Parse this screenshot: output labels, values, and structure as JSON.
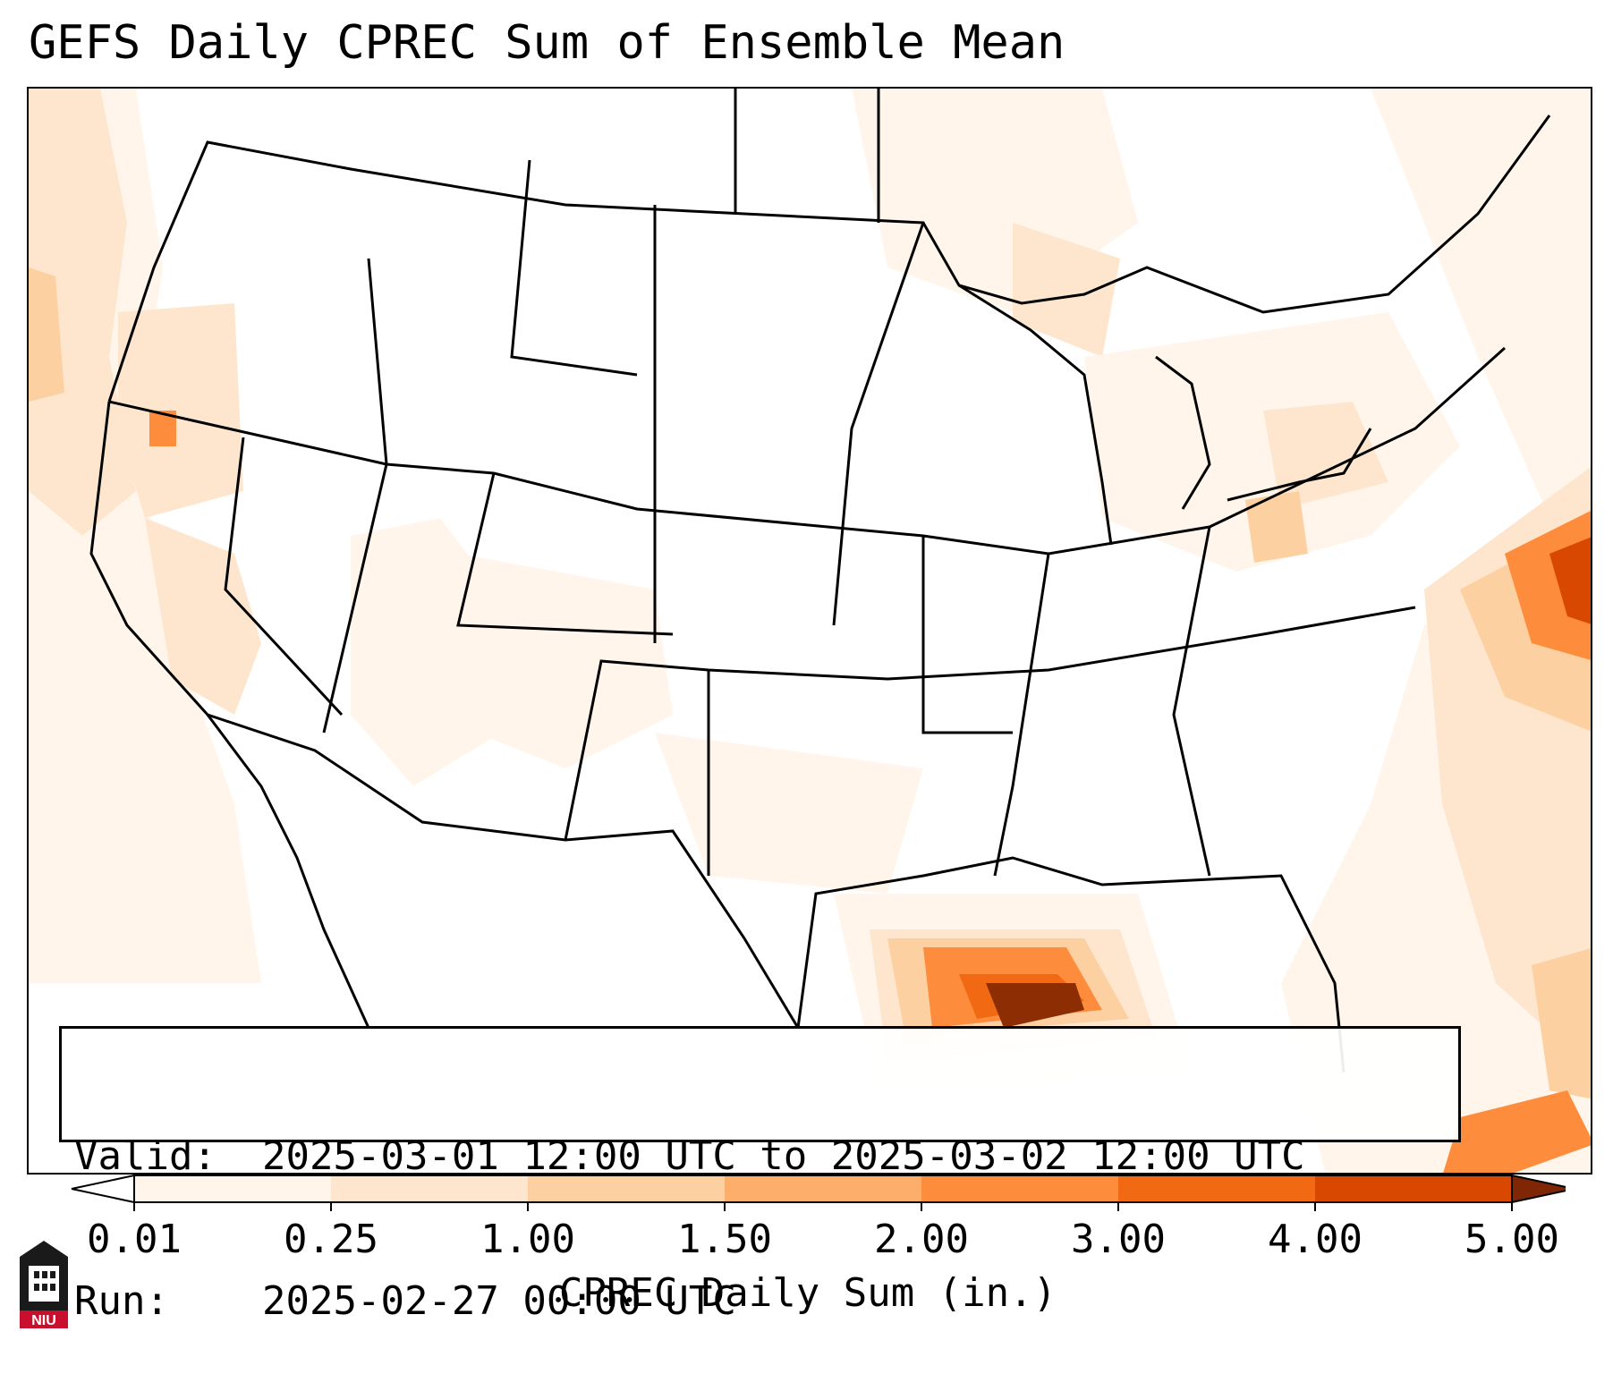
{
  "title": "GEFS Daily CPREC Sum of Ensemble Mean",
  "info": {
    "valid_key": "Valid:",
    "valid_value": "2025-03-01 12:00 UTC to 2025-03-02 12:00 UTC",
    "run_key": "Run:",
    "run_value": "2025-02-27 00:00 UTC"
  },
  "colorbar": {
    "label": "CPREC Daily Sum (in.)",
    "ticks": [
      "0.01",
      "0.25",
      "1.00",
      "1.50",
      "2.00",
      "3.00",
      "4.00",
      "5.00"
    ],
    "colors": [
      "#fff5eb",
      "#fee6ce",
      "#fdd0a2",
      "#fdae6b",
      "#fd8d3c",
      "#f16913",
      "#d94801",
      "#8c2d04"
    ],
    "under_color": "#ffffff",
    "over_color": "#7f2704"
  },
  "logo": {
    "text": "NIU",
    "icon": "niu-tower-logo-icon"
  }
}
